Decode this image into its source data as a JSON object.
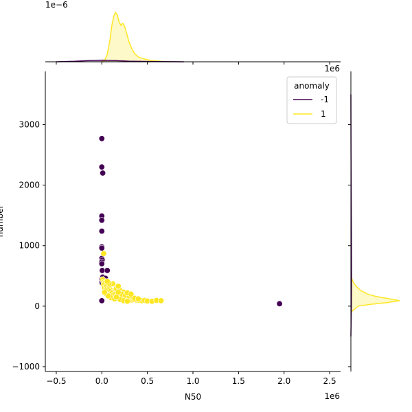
{
  "chart_data": {
    "type": "scatter",
    "xlabel": "N50",
    "ylabel": "number",
    "x_multiplier_label": "1e6",
    "top_marginal_multiplier_label": "1e−6",
    "right_marginal_multiplier_label": "1e6",
    "xlim": [
      -0.62,
      2.62
    ],
    "ylim": [
      -1080,
      3880
    ],
    "x_ticks": [
      -0.5,
      0.0,
      0.5,
      1.0,
      1.5,
      2.0,
      2.5
    ],
    "x_tick_labels": [
      "−0.5",
      "0.0",
      "0.5",
      "1.0",
      "1.5",
      "2.0",
      "2.5"
    ],
    "y_ticks": [
      -1000,
      0,
      1000,
      2000,
      3000
    ],
    "y_tick_labels": [
      "−1000",
      "0",
      "1000",
      "2000",
      "3000"
    ],
    "legend": {
      "title": "anomaly",
      "placement": "top-right",
      "entries": [
        {
          "label": "-1",
          "color": "#440154"
        },
        {
          "label": "1",
          "color": "#fde725"
        }
      ]
    },
    "series": [
      {
        "name": "-1",
        "color": "#440154",
        "points": [
          [
            0.0,
            2770
          ],
          [
            0.0,
            2300
          ],
          [
            0.01,
            2200
          ],
          [
            0.0,
            1490
          ],
          [
            0.0,
            1420
          ],
          [
            0.0,
            1240
          ],
          [
            0.0,
            980
          ],
          [
            0.0,
            960
          ],
          [
            0.0,
            790
          ],
          [
            0.005,
            760
          ],
          [
            0.0,
            730
          ],
          [
            0.0,
            700
          ],
          [
            0.005,
            590
          ],
          [
            0.06,
            590
          ],
          [
            0.01,
            480
          ],
          [
            0.0,
            440
          ],
          [
            0.0,
            400
          ],
          [
            0.005,
            380
          ],
          [
            0.04,
            460
          ],
          [
            0.0,
            90
          ],
          [
            1.95,
            40
          ]
        ]
      },
      {
        "name": "1",
        "color": "#fde725",
        "points": [
          [
            0.02,
            870
          ],
          [
            0.01,
            440
          ],
          [
            0.02,
            400
          ],
          [
            0.03,
            380
          ],
          [
            0.02,
            350
          ],
          [
            0.04,
            330
          ],
          [
            0.03,
            300
          ],
          [
            0.05,
            320
          ],
          [
            0.06,
            290
          ],
          [
            0.08,
            300
          ],
          [
            0.1,
            260
          ],
          [
            0.12,
            230
          ],
          [
            0.14,
            250
          ],
          [
            0.07,
            270
          ],
          [
            0.09,
            240
          ],
          [
            0.11,
            210
          ],
          [
            0.13,
            190
          ],
          [
            0.15,
            200
          ],
          [
            0.17,
            180
          ],
          [
            0.19,
            170
          ],
          [
            0.21,
            160
          ],
          [
            0.23,
            150
          ],
          [
            0.25,
            140
          ],
          [
            0.27,
            130
          ],
          [
            0.29,
            120
          ],
          [
            0.31,
            110
          ],
          [
            0.33,
            100
          ],
          [
            0.35,
            110
          ],
          [
            0.38,
            100
          ],
          [
            0.41,
            95
          ],
          [
            0.44,
            90
          ],
          [
            0.47,
            95
          ],
          [
            0.5,
            85
          ],
          [
            0.55,
            80
          ],
          [
            0.6,
            95
          ],
          [
            0.65,
            90
          ],
          [
            0.16,
            290
          ],
          [
            0.2,
            260
          ],
          [
            0.24,
            230
          ],
          [
            0.18,
            330
          ],
          [
            0.12,
            370
          ],
          [
            0.08,
            380
          ],
          [
            0.06,
            410
          ],
          [
            0.22,
            200
          ],
          [
            0.26,
            180
          ],
          [
            0.3,
            170
          ],
          [
            0.34,
            150
          ],
          [
            0.28,
            220
          ],
          [
            0.32,
            200
          ],
          [
            0.1,
            140
          ],
          [
            0.14,
            120
          ],
          [
            0.2,
            110
          ],
          [
            0.24,
            90
          ],
          [
            0.28,
            80
          ],
          [
            0.36,
            130
          ],
          [
            0.4,
            120
          ],
          [
            0.18,
            230
          ],
          [
            0.16,
            150
          ],
          [
            0.05,
            200
          ],
          [
            0.07,
            170
          ],
          [
            0.04,
            250
          ],
          [
            0.03,
            230
          ]
        ]
      }
    ],
    "marginal_x": {
      "series": [
        {
          "name": "1",
          "color": "#fde725",
          "x": [
            0.0,
            0.03,
            0.06,
            0.09,
            0.11,
            0.13,
            0.15,
            0.17,
            0.19,
            0.21,
            0.23,
            0.25,
            0.27,
            0.3,
            0.33,
            0.36,
            0.4,
            0.45,
            0.5,
            0.55,
            0.6,
            0.66,
            0.75
          ],
          "density": [
            0.0,
            0.03,
            0.18,
            0.55,
            0.9,
            1.12,
            1.22,
            1.16,
            0.98,
            0.9,
            0.95,
            0.88,
            0.72,
            0.48,
            0.32,
            0.2,
            0.12,
            0.08,
            0.05,
            0.03,
            0.02,
            0.01,
            0.0
          ]
        },
        {
          "name": "-1",
          "color": "#440154",
          "x": [
            -0.5,
            -0.3,
            -0.1,
            0.0,
            0.1,
            0.3,
            0.6,
            0.9
          ],
          "density": [
            0.0,
            0.012,
            0.035,
            0.04,
            0.035,
            0.015,
            0.004,
            0.0
          ]
        }
      ]
    },
    "marginal_y": {
      "series": [
        {
          "name": "1",
          "color": "#fde725",
          "y": [
            -100,
            0,
            30,
            60,
            90,
            120,
            160,
            200,
            260,
            320,
            380,
            450,
            550
          ],
          "density": [
            0.0,
            0.15,
            0.4,
            0.75,
            1.0,
            0.8,
            0.52,
            0.34,
            0.2,
            0.12,
            0.06,
            0.02,
            0.0
          ]
        },
        {
          "name": "-1",
          "color": "#440154",
          "y": [
            -500,
            0,
            500,
            1000,
            1500,
            2000,
            2500,
            3000,
            3500
          ],
          "density": [
            0.0,
            0.01,
            0.012,
            0.011,
            0.008,
            0.005,
            0.003,
            0.001,
            0.0
          ]
        }
      ]
    }
  }
}
